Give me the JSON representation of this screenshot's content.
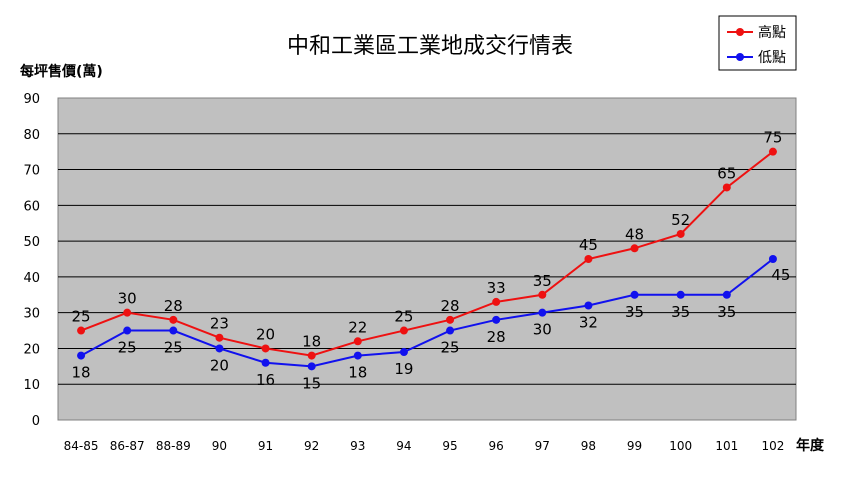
{
  "chart_data": {
    "type": "line",
    "title": "中和工業區工業地成交行情表",
    "ylabel": "每坪售價(萬)",
    "xlabel": "年度",
    "ylim": [
      0,
      90
    ],
    "yticks": [
      0,
      10,
      20,
      30,
      40,
      50,
      60,
      70,
      80,
      90
    ],
    "categories": [
      "84-85",
      "86-87",
      "88-89",
      "90",
      "91",
      "92",
      "93",
      "94",
      "95",
      "96",
      "97",
      "98",
      "99",
      "100",
      "101",
      "102"
    ],
    "grid": true,
    "legend": "top-right",
    "series": [
      {
        "name": "高點",
        "color": "#ee1111",
        "values": [
          25,
          30,
          28,
          23,
          20,
          18,
          22,
          25,
          28,
          33,
          35,
          45,
          48,
          52,
          65,
          75
        ],
        "label_position": "above"
      },
      {
        "name": "低點",
        "color": "#1111ee",
        "values": [
          18,
          25,
          25,
          20,
          16,
          15,
          18,
          19,
          25,
          28,
          30,
          32,
          35,
          35,
          35,
          45
        ],
        "label_position": "below"
      }
    ],
    "plot_background": "#c0c0c0"
  }
}
